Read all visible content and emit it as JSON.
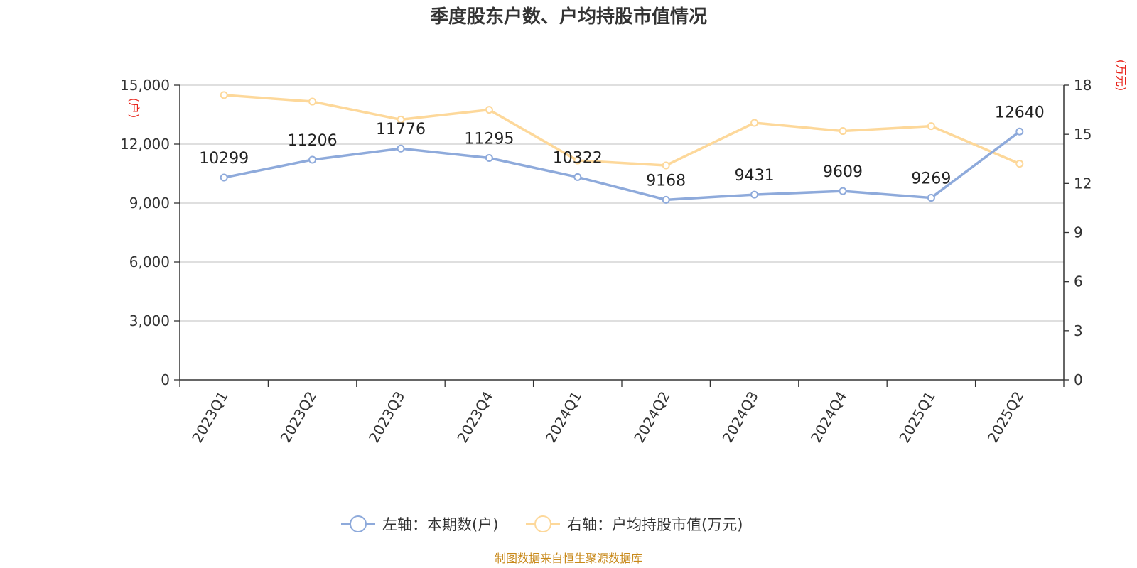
{
  "chart_data": {
    "type": "line",
    "title": "季度股东户数、户均持股市值情况",
    "categories": [
      "2023Q1",
      "2023Q2",
      "2023Q3",
      "2023Q4",
      "2024Q1",
      "2024Q2",
      "2024Q3",
      "2024Q4",
      "2025Q1",
      "2025Q2"
    ],
    "left_axis": {
      "unit": "(户)",
      "min": 0,
      "max": 15000,
      "ticks": [
        "0",
        "3,000",
        "6,000",
        "9,000",
        "12,000",
        "15,000"
      ],
      "tick_values": [
        0,
        3000,
        6000,
        9000,
        12000,
        15000
      ]
    },
    "right_axis": {
      "unit": "(万元)",
      "min": 0,
      "max": 18,
      "ticks": [
        "0",
        "3",
        "6",
        "9",
        "12",
        "15",
        "18"
      ],
      "tick_values": [
        0,
        3,
        6,
        9,
        12,
        15,
        18
      ]
    },
    "series": [
      {
        "name": "左轴：本期数(户)",
        "axis": "left",
        "color": "#8eaadb",
        "values": [
          10299,
          11206,
          11776,
          11295,
          10322,
          9168,
          9431,
          9609,
          9269,
          12640
        ],
        "labels": [
          "10299",
          "11206",
          "11776",
          "11295",
          "10322",
          "9168",
          "9431",
          "9609",
          "9269",
          "12640"
        ]
      },
      {
        "name": "右轴：户均持股市值(万元)",
        "axis": "right",
        "color": "#fdd89a",
        "values": [
          17.4,
          17.0,
          15.9,
          16.5,
          13.4,
          13.1,
          15.7,
          15.2,
          15.5,
          13.2
        ]
      }
    ],
    "grid": true,
    "legend_position": "bottom-center"
  },
  "source": "制图数据来自恒生聚源数据库"
}
